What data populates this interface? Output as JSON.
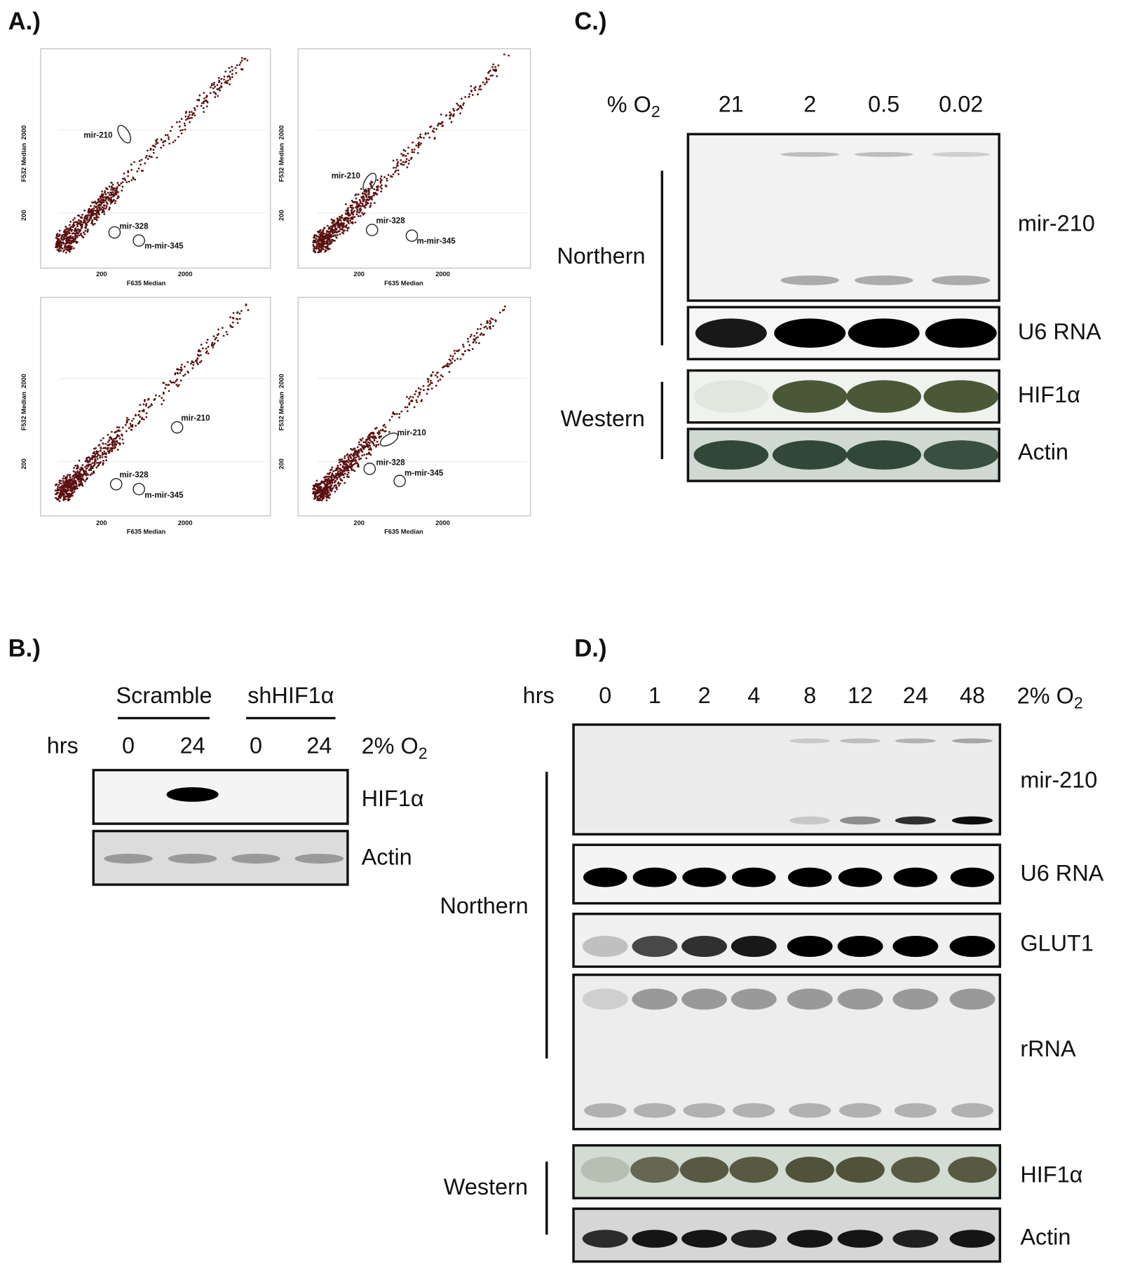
{
  "panels": {
    "A": {
      "label": "A.)",
      "plots": [
        {
          "x_label": "F635 Median",
          "y_label": "F532 Median",
          "xticks": [
            "200",
            "2000"
          ],
          "yticks": [
            "200",
            "2000"
          ],
          "annotations": [
            "mir-210",
            "mir-328",
            "m-mir-345"
          ]
        },
        {
          "x_label": "F635 Median",
          "y_label": "F532 Median",
          "xticks": [
            "200",
            "2000"
          ],
          "yticks": [
            "200",
            "2000"
          ],
          "annotations": [
            "mir-210",
            "mir-328",
            "m-mir-345"
          ]
        },
        {
          "x_label": "F635 Median",
          "y_label": "F532 Median",
          "xticks": [
            "200",
            "2000"
          ],
          "yticks": [
            "200",
            "2000"
          ],
          "annotations": [
            "mir-210",
            "mir-328",
            "m-mir-345"
          ]
        },
        {
          "x_label": "F635 Median",
          "y_label": "F532 Median",
          "xticks": [
            "200",
            "2000"
          ],
          "yticks": [
            "200",
            "2000"
          ],
          "annotations": [
            "mir-210",
            "mir-328",
            "m-mir-345"
          ]
        }
      ]
    },
    "B": {
      "label": "B.)",
      "groups": [
        "Scramble",
        "shHIF1α"
      ],
      "row_label": "hrs",
      "lanes": [
        "0",
        "24",
        "0",
        "24"
      ],
      "condition": {
        "text": "2% O",
        "subscript": "2"
      },
      "blots": [
        "HIF1α",
        "Actin"
      ]
    },
    "C": {
      "label": "C.)",
      "header": {
        "text": "% O",
        "subscript": "2"
      },
      "lanes": [
        "21",
        "2",
        "0.5",
        "0.02"
      ],
      "blots": [
        "mir-210",
        "U6 RNA",
        "HIF1α",
        "Actin"
      ],
      "groups": [
        "Northern",
        "Western"
      ]
    },
    "D": {
      "label": "D.)",
      "row_label": "hrs",
      "lanes": [
        "0",
        "1",
        "2",
        "4",
        "8",
        "12",
        "24",
        "48"
      ],
      "condition": {
        "text": "2% O",
        "subscript": "2"
      },
      "blots": [
        "mir-210",
        "U6 RNA",
        "GLUT1",
        "rRNA",
        "HIF1α",
        "Actin"
      ],
      "groups": [
        "Northern",
        "Western"
      ]
    }
  }
}
